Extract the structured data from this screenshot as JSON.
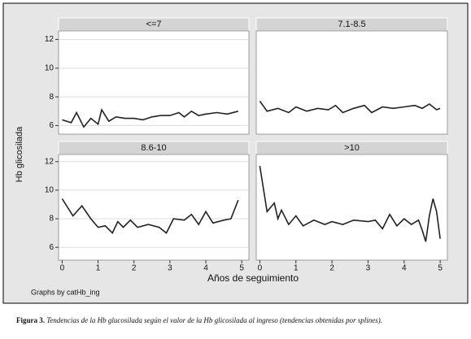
{
  "figure": {
    "y_title": "Hb glicosilada",
    "x_title": "Años de seguimiento",
    "note": "Graphs by catHb_ing",
    "caption_label": "Figura 3.",
    "caption_text": "Tendencias de la Hb glucosilada según el valor de la Hb glicosilada al ingreso (tendencias obtenidas por splines)."
  },
  "chart_data": [
    {
      "type": "line",
      "title": "<=7",
      "color": "#222222",
      "xlim": [
        -0.1,
        5.2
      ],
      "ylim": [
        5.4,
        12.6
      ],
      "yticks": [
        6,
        8,
        10,
        12
      ],
      "x": [
        0,
        0.25,
        0.4,
        0.6,
        0.8,
        1,
        1.1,
        1.3,
        1.5,
        1.75,
        2,
        2.25,
        2.5,
        2.75,
        3,
        3.25,
        3.4,
        3.6,
        3.8,
        4,
        4.3,
        4.6,
        4.9
      ],
      "values": [
        6.4,
        6.2,
        6.9,
        5.9,
        6.5,
        6.1,
        7.1,
        6.3,
        6.6,
        6.5,
        6.5,
        6.4,
        6.6,
        6.7,
        6.7,
        6.9,
        6.6,
        7.0,
        6.7,
        6.8,
        6.9,
        6.8,
        7.0
      ]
    },
    {
      "type": "line",
      "title": "7.1-8.5",
      "color": "#222222",
      "xlim": [
        -0.1,
        5.2
      ],
      "ylim": [
        5.4,
        12.6
      ],
      "x": [
        0,
        0.2,
        0.5,
        0.8,
        1,
        1.3,
        1.6,
        1.9,
        2.1,
        2.3,
        2.6,
        2.9,
        3.1,
        3.4,
        3.7,
        4.0,
        4.3,
        4.5,
        4.7,
        4.9,
        5
      ],
      "values": [
        7.7,
        7.0,
        7.2,
        6.9,
        7.3,
        7.0,
        7.2,
        7.1,
        7.4,
        6.9,
        7.2,
        7.4,
        6.9,
        7.3,
        7.2,
        7.3,
        7.4,
        7.2,
        7.5,
        7.1,
        7.2
      ]
    },
    {
      "type": "line",
      "title": "8.6-10",
      "color": "#222222",
      "xlim": [
        -0.1,
        5.2
      ],
      "ylim": [
        5.1,
        12.5
      ],
      "yticks": [
        6,
        8,
        10,
        12
      ],
      "xticks": [
        0,
        1,
        2,
        3,
        4,
        5
      ],
      "x": [
        0,
        0.3,
        0.55,
        0.8,
        1,
        1.2,
        1.4,
        1.55,
        1.7,
        1.9,
        2.1,
        2.4,
        2.7,
        2.9,
        3.1,
        3.4,
        3.6,
        3.8,
        4,
        4.2,
        4.5,
        4.7,
        4.9
      ],
      "values": [
        9.4,
        8.2,
        8.9,
        8.0,
        7.4,
        7.5,
        7.0,
        7.8,
        7.4,
        7.9,
        7.4,
        7.6,
        7.4,
        7.0,
        8.0,
        7.9,
        8.3,
        7.6,
        8.5,
        7.7,
        7.9,
        8.0,
        9.3
      ]
    },
    {
      "type": "line",
      "title": ">10",
      "color": "#222222",
      "xlim": [
        -0.1,
        5.2
      ],
      "ylim": [
        5.1,
        12.5
      ],
      "xticks": [
        0,
        1,
        2,
        3,
        4,
        5
      ],
      "x": [
        0,
        0.2,
        0.4,
        0.5,
        0.6,
        0.8,
        1,
        1.2,
        1.5,
        1.8,
        2,
        2.3,
        2.6,
        3,
        3.2,
        3.4,
        3.6,
        3.8,
        4,
        4.2,
        4.4,
        4.5,
        4.6,
        4.7,
        4.8,
        4.9,
        5
      ],
      "values": [
        11.7,
        8.5,
        9.1,
        8.0,
        8.6,
        7.6,
        8.2,
        7.5,
        7.9,
        7.6,
        7.8,
        7.6,
        7.9,
        7.8,
        7.9,
        7.3,
        8.3,
        7.5,
        8.0,
        7.6,
        7.9,
        7.2,
        6.4,
        8.2,
        9.4,
        8.5,
        6.6
      ]
    }
  ]
}
